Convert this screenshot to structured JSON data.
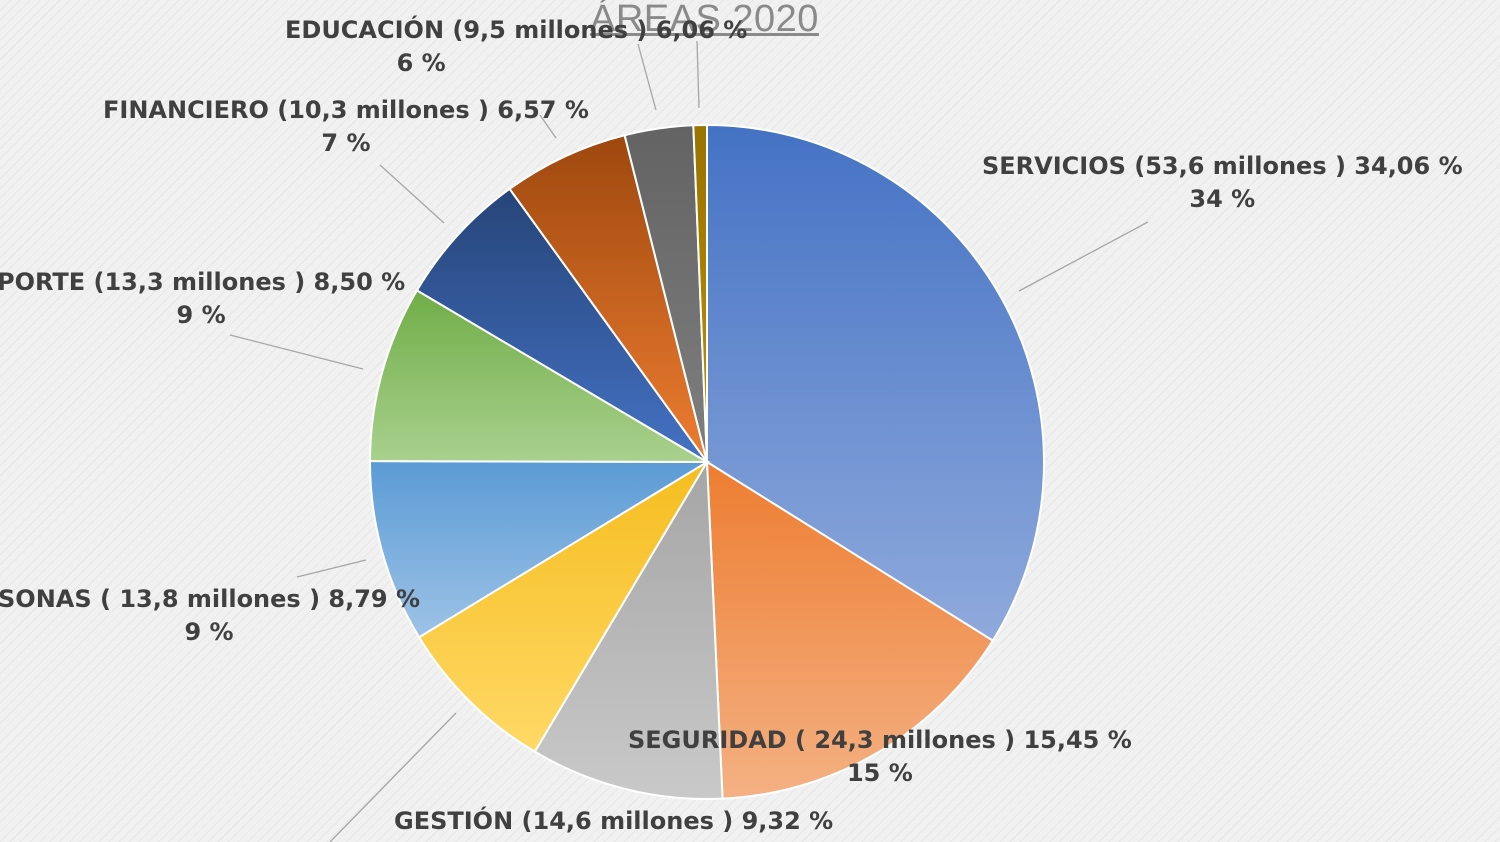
{
  "chart_data": {
    "type": "pie",
    "title": "ÁREAS  2020",
    "start_angle_deg": 0,
    "direction": "clockwise",
    "slices": [
      {
        "key": "servicios",
        "text": "SERVICIOS  (53,6 millones ) 34,06 %",
        "pct_label": "34 %",
        "value": 34.06,
        "color_top": "#4472c4",
        "color_bottom": "#8faadc"
      },
      {
        "key": "seguridad",
        "text": "SEGURIDAD ( 24,3 millones )  15,45 %",
        "pct_label": "15 %",
        "value": 15.45,
        "color_top": "#ed7d31",
        "color_bottom": "#f4b183"
      },
      {
        "key": "gestion",
        "text": "GESTIÓN (14,6 millones ) 9,32 %",
        "pct_label": "",
        "value": 9.32,
        "color_top": "#a5a5a5",
        "color_bottom": "#c9c9c9"
      },
      {
        "key": "unlabeled",
        "text": "",
        "pct_label": "",
        "value": 7.8,
        "color_top": "#f5bd1f",
        "color_bottom": "#ffd966"
      },
      {
        "key": "personas",
        "text": "SONAS ( 13,8 millones ) 8,79 %",
        "pct_label": "9 %",
        "value": 8.79,
        "color_top": "#5b9bd5",
        "color_bottom": "#9dc3e6"
      },
      {
        "key": "transporte",
        "text": "PORTE (13,3 millones ) 8,50 %",
        "pct_label": "9 %",
        "value": 8.5,
        "color_top": "#70ad47",
        "color_bottom": "#a9d18e"
      },
      {
        "key": "financiero",
        "text": "FINANCIERO (10,3 millones ) 6,57 %",
        "pct_label": "7 %",
        "value": 6.57,
        "color_top": "#264478",
        "color_bottom": "#4472c4"
      },
      {
        "key": "educacion",
        "text": "EDUCACIÓN (9,5 millones )  6,06 %",
        "pct_label": "6 %",
        "value": 6.06,
        "color_top": "#9e480e",
        "color_bottom": "#ed7d31"
      },
      {
        "key": "gray",
        "text": "",
        "pct_label": "",
        "value": 3.3,
        "color_top": "#636363",
        "color_bottom": "#7f7f7f"
      },
      {
        "key": "gold",
        "text": "",
        "pct_label": "",
        "value": 0.65,
        "color_top": "#997300",
        "color_bottom": "#bf9000"
      }
    ],
    "leader_color": "#a6a6a6"
  }
}
